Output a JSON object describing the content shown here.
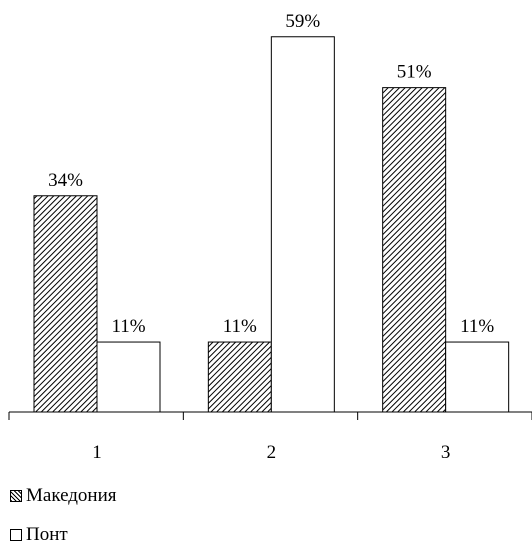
{
  "chart_data": {
    "type": "bar",
    "categories": [
      "1",
      "2",
      "3"
    ],
    "series": [
      {
        "name": "Македония",
        "values": [
          34,
          11,
          51
        ],
        "labels": [
          "34%",
          "11%",
          "51%"
        ],
        "fill": "hatched"
      },
      {
        "name": "Понт",
        "values": [
          11,
          59,
          11
        ],
        "labels": [
          "11%",
          "59%",
          "11%"
        ],
        "fill": "white"
      }
    ],
    "ylim": [
      0,
      65
    ],
    "unit": "%",
    "grid": false,
    "legend_position": "bottom-left"
  }
}
